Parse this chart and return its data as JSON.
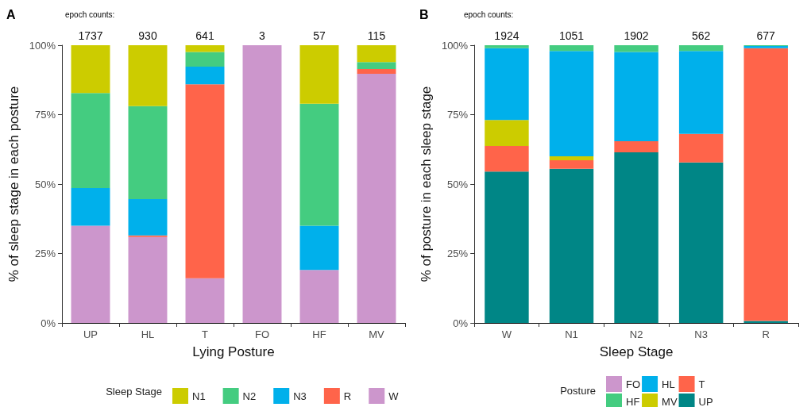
{
  "chart_data": [
    {
      "type": "bar",
      "stacked": true,
      "xlabel": "Lying Posture",
      "ylabel": "% of sleep stage in each posture",
      "legend_title": "Sleep Stage",
      "legend": "bottom",
      "categories": [
        "UP",
        "HL",
        "T",
        "FO",
        "HF",
        "MV"
      ],
      "ylim": [
        0,
        100
      ],
      "yticks": [
        {
          "value": 0,
          "label": "0%"
        },
        {
          "value": 25,
          "label": "25%"
        },
        {
          "value": 50,
          "label": "50%"
        },
        {
          "value": 75,
          "label": "75%"
        },
        {
          "value": 100,
          "label": "100%"
        }
      ],
      "series": [
        {
          "name": "W",
          "color": "#cc96cc",
          "values": [
            35.0,
            30.9,
            16.1,
            100,
            19.1,
            89.7
          ]
        },
        {
          "name": "R",
          "color": "#ff644a",
          "values": [
            0,
            0.6,
            69.8,
            0,
            0,
            1.7
          ]
        },
        {
          "name": "N3",
          "color": "#00b0eb",
          "values": [
            13.6,
            13.1,
            6.4,
            0,
            15.9,
            0
          ]
        },
        {
          "name": "N2",
          "color": "#44cc80",
          "values": [
            34.2,
            33.5,
            5.3,
            0,
            43.9,
            2.5
          ]
        },
        {
          "name": "N1",
          "color": "#cccc00",
          "values": [
            17.2,
            21.9,
            2.4,
            0,
            21.1,
            6.1
          ]
        }
      ],
      "annotations": [
        "A",
        "epoch counts:",
        "1737",
        "930",
        "641",
        "3",
        "57",
        "115"
      ]
    },
    {
      "type": "bar",
      "stacked": true,
      "xlabel": "Sleep Stage",
      "ylabel": "% of posture in each sleep stage",
      "legend_title": "Posture",
      "legend": "bottom",
      "categories": [
        "W",
        "N1",
        "N2",
        "N3",
        "R"
      ],
      "ylim": [
        0,
        100
      ],
      "yticks": [
        {
          "value": 0,
          "label": "0%"
        },
        {
          "value": 25,
          "label": "25%"
        },
        {
          "value": 50,
          "label": "50%"
        },
        {
          "value": 75,
          "label": "75%"
        },
        {
          "value": 100,
          "label": "100%"
        }
      ],
      "series": [
        {
          "name": "UP",
          "color": "#008686",
          "values": [
            54.5,
            55.5,
            61.4,
            57.8,
            0.7
          ]
        },
        {
          "name": "T",
          "color": "#ff644a",
          "values": [
            9.2,
            3.1,
            4.0,
            10.3,
            98.2
          ]
        },
        {
          "name": "MV",
          "color": "#cccc00",
          "values": [
            9.4,
            1.4,
            0,
            0,
            0
          ]
        },
        {
          "name": "HL",
          "color": "#00b0eb",
          "values": [
            25.8,
            37.9,
            32.2,
            29.8,
            0.8
          ]
        },
        {
          "name": "HF",
          "color": "#44cc80",
          "values": [
            1.1,
            2.1,
            2.4,
            2.1,
            0.3
          ]
        },
        {
          "name": "FO",
          "color": "#cc96cc",
          "values": [
            0,
            0,
            0,
            0,
            0
          ]
        }
      ],
      "annotations": [
        "B",
        "epoch counts:",
        "1924",
        "1051",
        "1902",
        "562",
        "677"
      ]
    }
  ]
}
